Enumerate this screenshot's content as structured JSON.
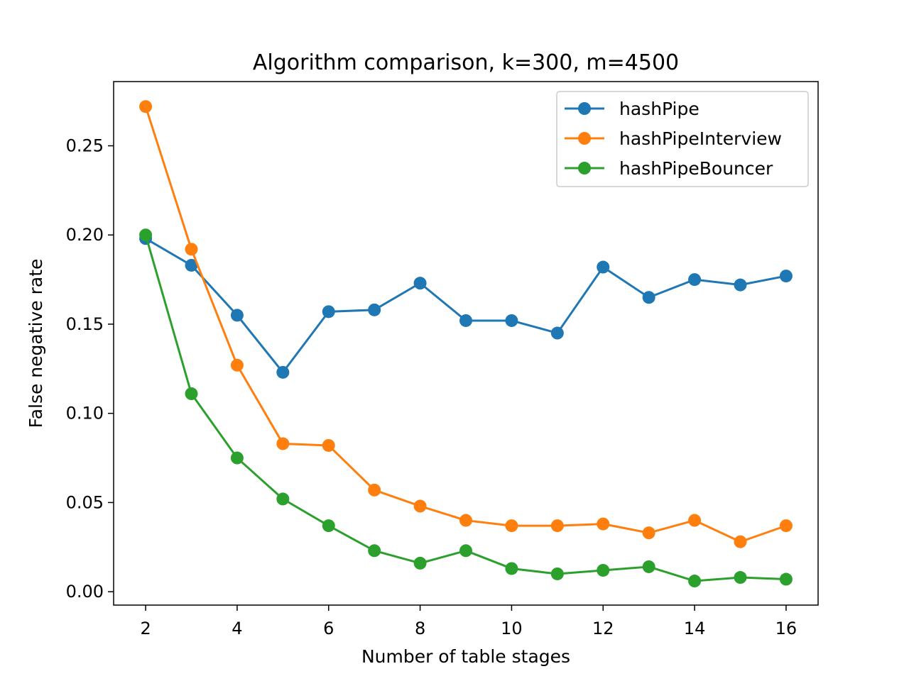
{
  "chart_data": {
    "type": "line",
    "title": "Algorithm comparison, k=300, m=4500",
    "xlabel": "Number of table stages",
    "ylabel": "False negative rate",
    "x": [
      2,
      3,
      4,
      5,
      6,
      7,
      8,
      9,
      10,
      11,
      12,
      13,
      14,
      15,
      16
    ],
    "xlim": [
      1.3,
      16.7
    ],
    "ylim": [
      -0.0075,
      0.286
    ],
    "xticks": [
      2,
      4,
      6,
      8,
      10,
      12,
      14,
      16
    ],
    "xtick_labels": [
      "2",
      "4",
      "6",
      "8",
      "10",
      "12",
      "14",
      "16"
    ],
    "yticks": [
      0.0,
      0.05,
      0.1,
      0.15,
      0.2,
      0.25
    ],
    "ytick_labels": [
      "0.00",
      "0.05",
      "0.10",
      "0.15",
      "0.20",
      "0.25"
    ],
    "grid": false,
    "legend_position": "top-right",
    "series": [
      {
        "name": "hashPipe",
        "color": "#1f77b4",
        "values": [
          0.198,
          0.183,
          0.155,
          0.123,
          0.157,
          0.158,
          0.173,
          0.152,
          0.152,
          0.145,
          0.182,
          0.165,
          0.175,
          0.172,
          0.177
        ]
      },
      {
        "name": "hashPipeInterview",
        "color": "#ff7f0e",
        "values": [
          0.272,
          0.192,
          0.127,
          0.083,
          0.082,
          0.057,
          0.048,
          0.04,
          0.037,
          0.037,
          0.038,
          0.033,
          0.04,
          0.028,
          0.037
        ]
      },
      {
        "name": "hashPipeBouncer",
        "color": "#2ca02c",
        "values": [
          0.2,
          0.111,
          0.075,
          0.052,
          0.037,
          0.023,
          0.016,
          0.023,
          0.013,
          0.01,
          0.012,
          0.014,
          0.006,
          0.008,
          0.007
        ]
      }
    ]
  }
}
